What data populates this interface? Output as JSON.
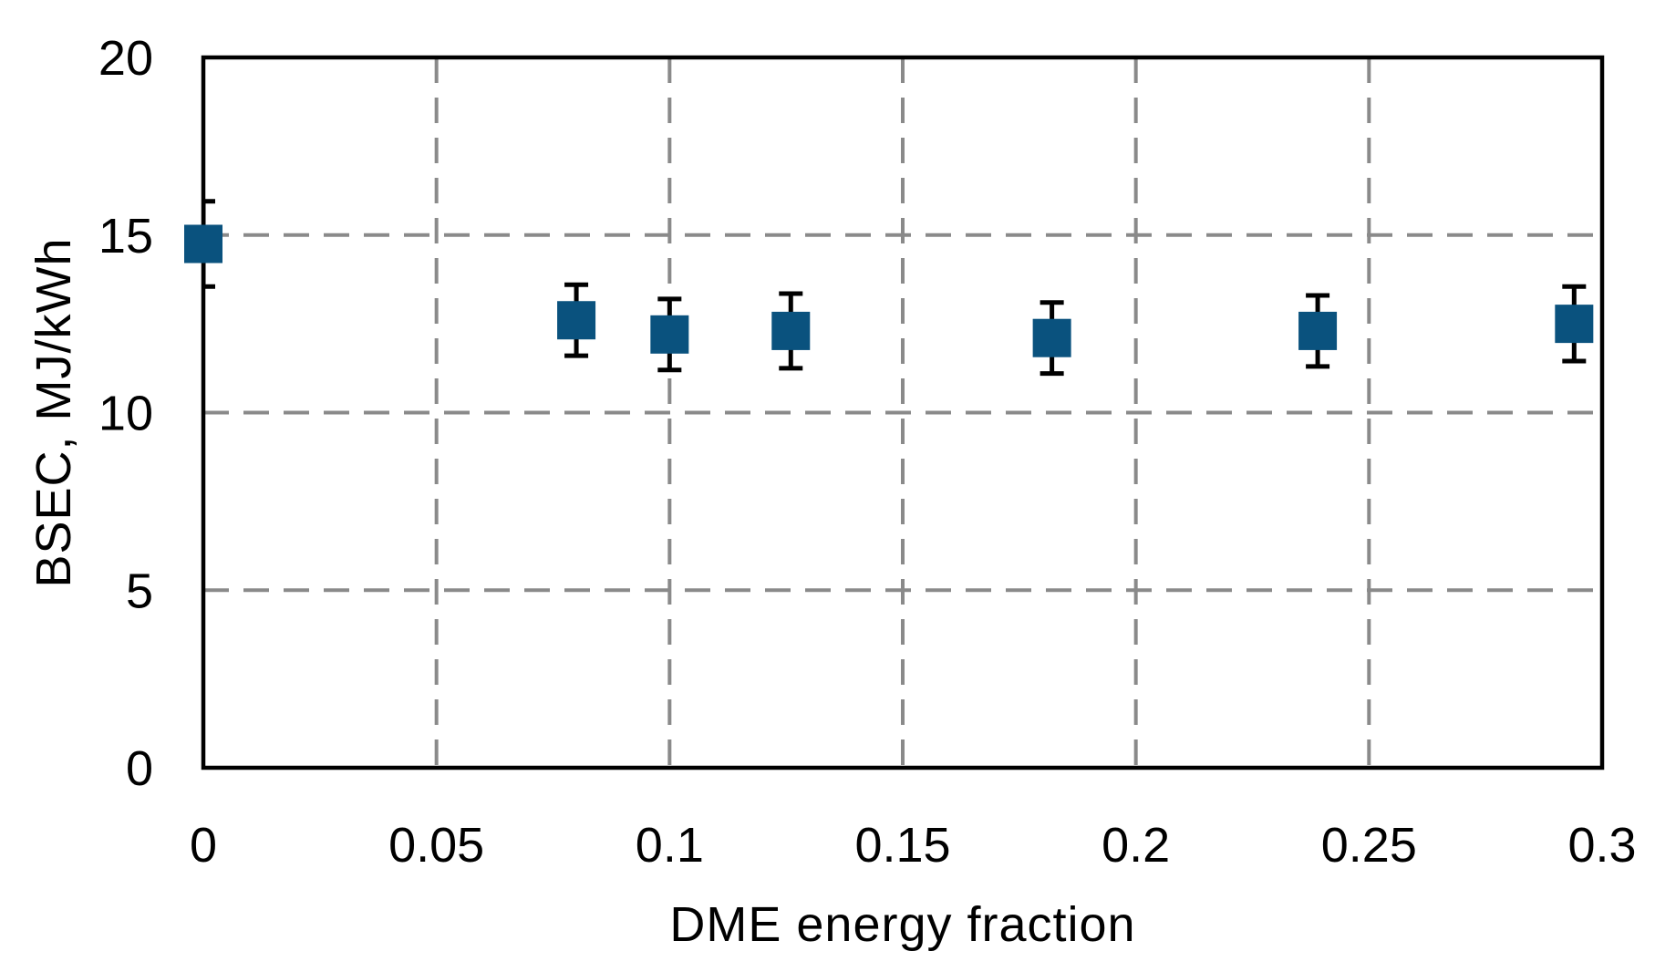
{
  "chart_data": {
    "type": "scatter",
    "title": "",
    "xlabel": "DME energy fraction",
    "ylabel": "BSEC, MJ/kWh",
    "xlim": [
      0,
      0.3
    ],
    "ylim": [
      0,
      20
    ],
    "x_ticks": [
      0,
      0.05,
      0.1,
      0.15,
      0.2,
      0.25,
      0.3
    ],
    "x_tick_labels": [
      "0",
      "0.05",
      "0.1",
      "0.15",
      "0.2",
      "0.25",
      "0.3"
    ],
    "y_ticks": [
      0,
      5,
      10,
      15,
      20
    ],
    "y_tick_labels": [
      "0",
      "5",
      "10",
      "15",
      "20"
    ],
    "grid": "major gridlines, dashed, both axes, interior only",
    "legend_position": "none",
    "series": [
      {
        "name": "BSEC",
        "marker": "square",
        "marker_color": "#0A527E",
        "error_bar_color": "#000000",
        "points": [
          {
            "x": 0,
            "y": 14.75,
            "yerr": 1.2
          },
          {
            "x": 0.08,
            "y": 12.6,
            "yerr": 1.0
          },
          {
            "x": 0.1,
            "y": 12.2,
            "yerr": 1.0
          },
          {
            "x": 0.126,
            "y": 12.3,
            "yerr": 1.05
          },
          {
            "x": 0.182,
            "y": 12.1,
            "yerr": 1.0
          },
          {
            "x": 0.239,
            "y": 12.3,
            "yerr": 1.0
          },
          {
            "x": 0.294,
            "y": 12.5,
            "yerr": 1.05
          }
        ]
      }
    ],
    "colors": {
      "marker": "#0A527E",
      "gridline": "#8A8A8A",
      "axis": "#000000",
      "text": "#000000",
      "background": "#FFFFFF"
    }
  }
}
